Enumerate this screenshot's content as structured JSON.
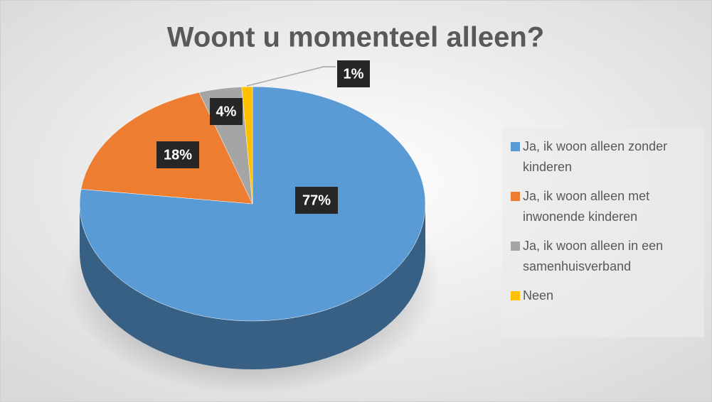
{
  "chart_data": {
    "type": "pie",
    "title": "Woont u momenteel alleen?",
    "categories": [
      "Ja, ik woon alleen zonder kinderen",
      "Ja, ik woon alleen met inwonende kinderen",
      "Ja, ik woon alleen in een samenhuisverband",
      "Neen"
    ],
    "values": [
      77,
      18,
      4,
      1
    ],
    "value_labels": [
      "77%",
      "18%",
      "4%",
      "1%"
    ],
    "colors": [
      "#5b9bd5",
      "#ed7d31",
      "#a5a5a5",
      "#ffc000"
    ],
    "legend": "right"
  }
}
